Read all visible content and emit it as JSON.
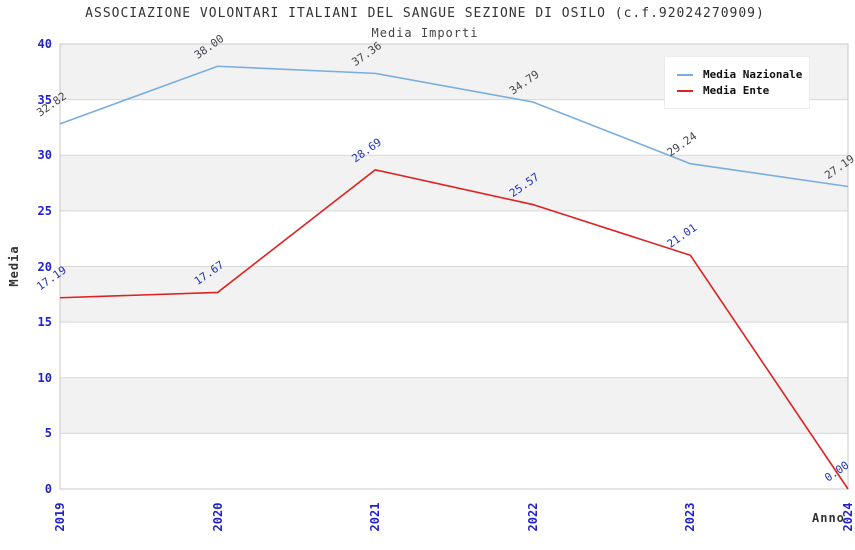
{
  "title": "ASSOCIAZIONE VOLONTARI ITALIANI DEL SANGUE SEZIONE DI OSILO (c.f.92024270909)",
  "subtitle": "Media Importi",
  "chart_data": {
    "type": "line",
    "x": [
      "2019",
      "2020",
      "2021",
      "2022",
      "2023",
      "2024"
    ],
    "series": [
      {
        "name": "Media Nazionale",
        "color": "#7aaede",
        "label_color": "#44444d",
        "values": [
          32.82,
          38.0,
          37.36,
          34.79,
          29.24,
          27.19
        ]
      },
      {
        "name": "Media Ente",
        "color": "#dd2222",
        "label_color": "#2233bb",
        "values": [
          17.19,
          17.67,
          28.69,
          25.57,
          21.01,
          0.0
        ]
      }
    ],
    "title": "Media Importi",
    "xlabel": "Anno",
    "ylabel": "Media",
    "ylim": [
      0,
      40
    ],
    "ytick_step": 5,
    "grid": true,
    "legend_position": "top-right",
    "band_colors": [
      "#f2f2f2",
      "#ffffff"
    ],
    "gridline_color": "#d8d8d8",
    "axis_border_color": "#c8c8c8",
    "tick_color": "#2222cc"
  }
}
